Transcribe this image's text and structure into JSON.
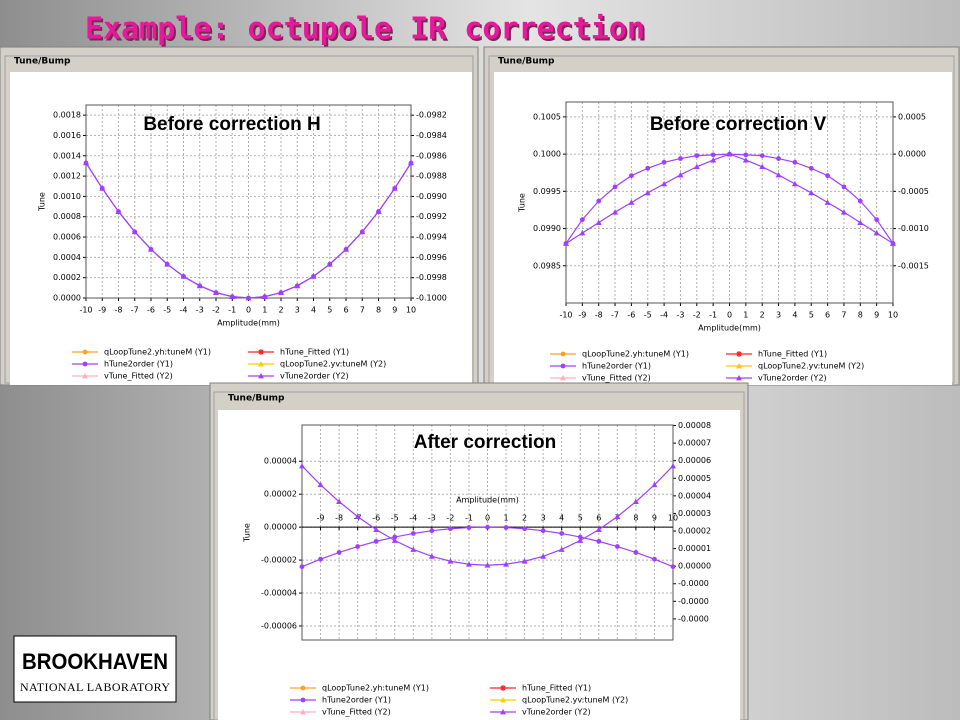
{
  "slide_title": "Example: octupole IR correction",
  "logo": {
    "name": "BROOKHAVEN",
    "subtitle": "NATIONAL LABORATORY"
  },
  "chart_data": [
    {
      "type": "line",
      "window_title": "Tune/Bump",
      "title": "Before correction H",
      "xlabel": "Amplitude(mm)",
      "ylabel": "Tune",
      "x": [
        -10,
        -9,
        -8,
        -7,
        -6,
        -5,
        -4,
        -3,
        -2,
        -1,
        0,
        1,
        2,
        3,
        4,
        5,
        6,
        7,
        8,
        9,
        10
      ],
      "xlim": [
        -10,
        10
      ],
      "xticks": [
        -10,
        -9,
        -8,
        -7,
        -6,
        -5,
        -4,
        -3,
        -2,
        -1,
        0,
        1,
        2,
        3,
        4,
        5,
        6,
        7,
        8,
        9,
        10
      ],
      "ylim": [
        0,
        0.0019
      ],
      "yticks": [
        {
          "value": 0,
          "label": "0.0000"
        },
        {
          "value": 0.0002,
          "label": "0.0002"
        },
        {
          "value": 0.0004,
          "label": "0.0004"
        },
        {
          "value": 0.0006,
          "label": "0.0006"
        },
        {
          "value": 0.0008,
          "label": "0.0008"
        },
        {
          "value": 0.001,
          "label": "0.0010"
        },
        {
          "value": 0.0012,
          "label": "0.0012"
        },
        {
          "value": 0.0014,
          "label": "0.0014"
        },
        {
          "value": 0.0016,
          "label": "0.0016"
        },
        {
          "value": 0.0018,
          "label": "0.0018"
        }
      ],
      "y2lim": [
        -0.1,
        -0.0981
      ],
      "y2ticks": [
        {
          "value": -0.1,
          "label": "-0.1000"
        },
        {
          "value": -0.0998,
          "label": "-0.0998"
        },
        {
          "value": -0.0996,
          "label": "-0.0996"
        },
        {
          "value": -0.0994,
          "label": "-0.0994"
        },
        {
          "value": -0.0992,
          "label": "-0.0992"
        },
        {
          "value": -0.099,
          "label": "-0.0990"
        },
        {
          "value": -0.0988,
          "label": "-0.0988"
        },
        {
          "value": -0.0986,
          "label": "-0.0986"
        },
        {
          "value": -0.0984,
          "label": "-0.0984"
        },
        {
          "value": -0.0982,
          "label": "-0.0982"
        }
      ],
      "grid": true,
      "series": [
        {
          "name": "qLoopTune2.yh:tuneM (Y1)",
          "color": "#ffa020",
          "marker": "circle"
        },
        {
          "name": "hTune2order (Y1)",
          "color": "#a040ff",
          "marker": "circle",
          "values": [
            0.00133,
            0.00108,
            0.000851,
            0.000652,
            0.000479,
            0.000333,
            0.000213,
            0.00012,
            5.32e-05,
            1.33e-05,
            0,
            1.33e-05,
            5.32e-05,
            0.00012,
            0.000213,
            0.000333,
            0.000479,
            0.000652,
            0.000851,
            0.00108,
            0.00133
          ]
        },
        {
          "name": "vTune_Fitted (Y2)",
          "color": "#ffb0c0",
          "marker": "triangle",
          "axis": "y2"
        },
        {
          "name": "hTune_Fitted (Y1)",
          "color": "#ff2020",
          "marker": "star"
        },
        {
          "name": "qLoopTune2.yv:tuneM (Y2)",
          "color": "#ffcc00",
          "marker": "triangle",
          "axis": "y2"
        },
        {
          "name": "vTune2order (Y2)",
          "color": "#a040ff",
          "marker": "triangle",
          "axis": "y2",
          "values": [
            -0.09867,
            -0.09892,
            -0.099149,
            -0.099348,
            -0.099521,
            -0.099667,
            -0.099787,
            -0.09988,
            -0.0999468,
            -0.0999867,
            -0.1,
            -0.0999867,
            -0.0999468,
            -0.09988,
            -0.099787,
            -0.099667,
            -0.099521,
            -0.099348,
            -0.099149,
            -0.09892,
            -0.09867
          ]
        }
      ]
    },
    {
      "type": "line",
      "window_title": "Tune/Bump",
      "title": "Before correction V",
      "xlabel": "Amplitude(mm)",
      "ylabel": "Tune",
      "x": [
        -10,
        -9,
        -8,
        -7,
        -6,
        -5,
        -4,
        -3,
        -2,
        -1,
        0,
        1,
        2,
        3,
        4,
        5,
        6,
        7,
        8,
        9,
        10
      ],
      "xlim": [
        -10,
        10
      ],
      "xticks": [
        -10,
        -9,
        -8,
        -7,
        -6,
        -5,
        -4,
        -3,
        -2,
        -1,
        0,
        1,
        2,
        3,
        4,
        5,
        6,
        7,
        8,
        9,
        10
      ],
      "ylim": [
        0.098,
        0.1007
      ],
      "yticks": [
        {
          "value": 0.0985,
          "label": "0.0985"
        },
        {
          "value": 0.099,
          "label": "0.0990"
        },
        {
          "value": 0.0995,
          "label": "0.0995"
        },
        {
          "value": 0.1,
          "label": "0.1000"
        },
        {
          "value": 0.1005,
          "label": "0.1005"
        }
      ],
      "y2lim": [
        -0.002,
        0.0007
      ],
      "y2ticks": [
        {
          "value": -0.0015,
          "label": "-0.0015"
        },
        {
          "value": -0.001,
          "label": "-0.0010"
        },
        {
          "value": -0.0005,
          "label": "-0.0005"
        },
        {
          "value": 0,
          "label": "0.0000"
        },
        {
          "value": 0.0005,
          "label": "0.0005"
        }
      ],
      "grid": true,
      "series": [
        {
          "name": "qLoopTune2.yh:tuneM (Y1)",
          "color": "#ffa020",
          "marker": "circle"
        },
        {
          "name": "hTune2order (Y1)",
          "color": "#a040ff",
          "marker": "circle",
          "values": [
            0.0988,
            0.09912,
            0.09937,
            0.09956,
            0.09971,
            0.09981,
            0.09989,
            0.09994,
            0.09998,
            0.09999,
            0.1,
            0.09999,
            0.09998,
            0.09994,
            0.09989,
            0.09981,
            0.09971,
            0.09956,
            0.09937,
            0.09912,
            0.0988
          ]
        },
        {
          "name": "vTune_Fitted (Y2)",
          "color": "#ffb0c0",
          "marker": "triangle",
          "axis": "y2"
        },
        {
          "name": "hTune_Fitted (Y1)",
          "color": "#ff2020",
          "marker": "star"
        },
        {
          "name": "qLoopTune2.yv:tuneM (Y2)",
          "color": "#ffcc00",
          "marker": "triangle",
          "axis": "y2"
        },
        {
          "name": "vTune2order (Y2)",
          "color": "#a040ff",
          "marker": "triangle",
          "axis": "y2",
          "values": [
            -0.0012,
            -0.00106,
            -0.00092,
            -0.00078,
            -0.00065,
            -0.00052,
            -0.0004,
            -0.00028,
            -0.00017,
            -8e-05,
            0,
            -8e-05,
            -0.00017,
            -0.00028,
            -0.0004,
            -0.00052,
            -0.00065,
            -0.00078,
            -0.00092,
            -0.00106,
            -0.0012
          ]
        }
      ]
    },
    {
      "type": "line",
      "window_title": "Tune/Bump",
      "title": "After correction",
      "xlabel": "Amplitude(mm)",
      "ylabel": "Tune",
      "x": [
        -10,
        -9,
        -8,
        -7,
        -6,
        -5,
        -4,
        -3,
        -2,
        -1,
        0,
        1,
        2,
        3,
        4,
        5,
        6,
        7,
        8,
        9,
        10
      ],
      "xlim": [
        -10,
        10
      ],
      "xticks": [
        -9,
        -8,
        -7,
        -6,
        -5,
        -4,
        -3,
        -2,
        -1,
        0,
        1,
        2,
        3,
        4,
        5,
        6,
        7,
        8,
        9,
        10
      ],
      "ylim": [
        -6.85e-05,
        6.2e-05
      ],
      "yticks": [
        {
          "value": -6e-05,
          "label": "-0.00006"
        },
        {
          "value": -4e-05,
          "label": "-0.00004"
        },
        {
          "value": -2e-05,
          "label": "-0.00002"
        },
        {
          "value": 0,
          "label": "0.00000"
        },
        {
          "value": 2e-05,
          "label": "0.00002"
        },
        {
          "value": 4e-05,
          "label": "0.00004"
        }
      ],
      "y2lim": [
        -4.2e-05,
        8.03e-05
      ],
      "y2ticks": [
        {
          "value": -3e-05,
          "label": "-0.0000"
        },
        {
          "value": -2e-05,
          "label": "-0.0000"
        },
        {
          "value": -1e-05,
          "label": "-0.0000"
        },
        {
          "value": 0,
          "label": "0.00000"
        },
        {
          "value": 1e-05,
          "label": "0.00001"
        },
        {
          "value": 2e-05,
          "label": "0.00002"
        },
        {
          "value": 3e-05,
          "label": "0.00003"
        },
        {
          "value": 4e-05,
          "label": "0.00004"
        },
        {
          "value": 5e-05,
          "label": "0.00005"
        },
        {
          "value": 6e-05,
          "label": "0.00006"
        },
        {
          "value": 7e-05,
          "label": "0.00007"
        },
        {
          "value": 8e-05,
          "label": "0.00008"
        }
      ],
      "grid": true,
      "series": [
        {
          "name": "qLoopTune2.yh:tuneM (Y1)",
          "color": "#ffa020",
          "marker": "circle"
        },
        {
          "name": "hTune2order (Y1)",
          "color": "#a040ff",
          "marker": "circle",
          "values": [
            -2.4e-05,
            -1.944e-05,
            -1.536e-05,
            -1.176e-05,
            -8.64e-06,
            -6e-06,
            -3.84e-06,
            -2.16e-06,
            -9.6e-07,
            -2.4e-07,
            0,
            -2.4e-07,
            -9.6e-07,
            -2.16e-06,
            -3.84e-06,
            -6e-06,
            -8.64e-06,
            -1.176e-05,
            -1.536e-05,
            -1.944e-05,
            -2.4e-05
          ]
        },
        {
          "name": "vTune_Fitted (Y2)",
          "color": "#ffb0c0",
          "marker": "triangle",
          "axis": "y2"
        },
        {
          "name": "hTune_Fitted (Y1)",
          "color": "#ff2020",
          "marker": "star"
        },
        {
          "name": "qLoopTune2.yv:tuneM (Y2)",
          "color": "#ffcc00",
          "marker": "triangle",
          "axis": "y2"
        },
        {
          "name": "vTune2order (Y2)",
          "color": "#a040ff",
          "marker": "triangle",
          "axis": "y2",
          "values": [
            5.7e-05,
            4.63e-05,
            3.67e-05,
            2.82e-05,
            2.08e-05,
            1.46e-05,
            9.5e-06,
            5.6e-06,
            2.8e-06,
            1.1e-06,
            5e-07,
            1.1e-06,
            2.8e-06,
            5.6e-06,
            9.5e-06,
            1.46e-05,
            2.08e-05,
            2.82e-05,
            3.67e-05,
            4.63e-05,
            5.7e-05
          ]
        }
      ]
    }
  ]
}
